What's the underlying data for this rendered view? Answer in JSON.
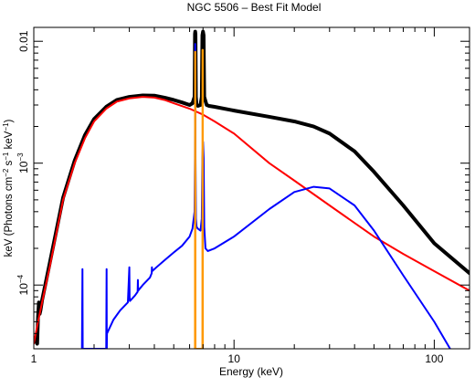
{
  "chart_data": {
    "type": "line",
    "title": "NGC 5506 – Best Fit Model",
    "xlabel": "Energy (keV)",
    "ylabel_parts": [
      "keV (Photons cm",
      "−2",
      " s",
      "−1",
      " keV",
      "−1",
      ")"
    ],
    "x_scale": "log",
    "y_scale": "log",
    "xlim": [
      1,
      150
    ],
    "ylim": [
      3e-05,
      0.013
    ],
    "grid": false,
    "x_ticks": [
      {
        "value": 1,
        "label": "1"
      },
      {
        "value": 10,
        "label": "10"
      },
      {
        "value": 100,
        "label": "100"
      }
    ],
    "y_ticks": [
      {
        "value": 0.0001,
        "label_base": "10",
        "label_exp": "−4"
      },
      {
        "value": 0.001,
        "label_base": "10",
        "label_exp": "−3"
      },
      {
        "value": 0.01,
        "label_base": "0.01",
        "label_exp": ""
      }
    ],
    "series": [
      {
        "color": "#000000",
        "width": 4,
        "x": [
          1.0,
          1.02,
          1.04,
          1.05,
          1.06,
          1.07,
          1.08,
          1.1,
          1.2,
          1.4,
          1.6,
          1.8,
          2.0,
          2.3,
          2.6,
          3.0,
          3.5,
          4.0,
          4.5,
          5.0,
          5.5,
          6.0,
          6.2,
          6.35,
          6.38,
          6.4,
          6.42,
          6.45,
          6.5,
          6.6,
          6.8,
          6.9,
          6.95,
          7.0,
          7.05,
          7.1,
          7.3,
          7.5,
          8.0,
          10.0,
          15.0,
          20.0,
          25.0,
          30.0,
          40.0,
          50.0,
          70.0,
          100.0,
          150.0
        ],
        "y": [
          3.5e-05,
          3.5e-05,
          3.3e-05,
          5.5e-05,
          7.2e-05,
          5.8e-05,
          6.2e-05,
          7.5e-05,
          0.00015,
          0.00052,
          0.00105,
          0.0017,
          0.0023,
          0.0029,
          0.0033,
          0.0035,
          0.0036,
          0.00358,
          0.00345,
          0.0033,
          0.00315,
          0.003,
          0.0031,
          0.0035,
          0.0115,
          0.012,
          0.0115,
          0.0035,
          0.003,
          0.00295,
          0.003,
          0.0035,
          0.0112,
          0.012,
          0.0112,
          0.0035,
          0.003,
          0.00295,
          0.0029,
          0.0027,
          0.0024,
          0.0022,
          0.002,
          0.00175,
          0.00125,
          0.00085,
          0.00045,
          0.00022,
          0.000125
        ]
      },
      {
        "color": "#ff0000",
        "width": 2,
        "x": [
          1.0,
          1.05,
          1.1,
          1.2,
          1.4,
          1.6,
          1.8,
          2.0,
          2.3,
          2.6,
          3.0,
          3.5,
          4.0,
          4.5,
          5.0,
          6.0,
          7.0,
          8.0,
          10.0,
          15.0,
          20.0,
          30.0,
          50.0,
          70.0,
          100.0,
          150.0
        ],
        "y": [
          3.3e-05,
          5e-05,
          7.2e-05,
          0.00014,
          0.0005,
          0.001,
          0.0016,
          0.0022,
          0.0028,
          0.0032,
          0.0034,
          0.0035,
          0.00345,
          0.0033,
          0.0031,
          0.0028,
          0.0025,
          0.0022,
          0.00175,
          0.001,
          0.00072,
          0.00045,
          0.00025,
          0.00018,
          0.00013,
          9e-05
        ]
      },
      {
        "color": "#0000ff",
        "width": 2,
        "x": [
          1.74,
          1.75,
          1.755,
          1.76,
          1.77,
          2.2,
          2.3,
          2.31,
          2.315,
          2.32,
          2.5,
          2.7,
          2.95,
          3.0,
          3.01,
          3.02,
          3.2,
          3.3,
          3.31,
          3.32,
          3.5,
          3.8,
          3.88,
          3.89,
          3.9,
          4.1,
          4.5,
          5.0,
          5.5,
          6.0,
          6.2,
          6.35,
          6.38,
          6.4,
          6.42,
          6.45,
          6.5,
          6.6,
          6.8,
          6.9,
          6.95,
          7.0,
          7.05,
          7.1,
          7.2,
          7.4,
          8.0,
          10.0,
          15.0,
          20.0,
          25.0,
          30.0,
          40.0,
          50.0,
          70.0,
          100.0,
          120.0
        ],
        "y": [
          3e-05,
          0.000135,
          3e-05,
          3e-05,
          3e-05,
          3e-05,
          3e-05,
          0.000135,
          3e-05,
          4e-05,
          5.2e-05,
          6.2e-05,
          7.2e-05,
          0.00014,
          8e-05,
          7.4e-05,
          8.2e-05,
          8.8e-05,
          0.00011,
          9e-05,
          0.0001,
          0.000115,
          0.000125,
          0.00014,
          0.00013,
          0.00014,
          0.00016,
          0.000185,
          0.00021,
          0.00025,
          0.00029,
          0.0004,
          0.0011,
          0.0095,
          0.0011,
          0.00035,
          0.0003,
          0.00029,
          0.00028,
          0.00035,
          0.0011,
          0.0015,
          0.0011,
          0.0003,
          0.0002,
          0.00019,
          0.0002,
          0.00025,
          0.00042,
          0.00058,
          0.00064,
          0.00062,
          0.00045,
          0.00028,
          0.00012,
          5e-05,
          3e-05
        ]
      },
      {
        "color": "#ff9900",
        "width": 2,
        "x": [
          6.36,
          6.38,
          6.39,
          6.41,
          6.42,
          6.44,
          6.93,
          6.95,
          6.96,
          6.98,
          6.99,
          7.01
        ],
        "y": [
          3e-05,
          3e-05,
          0.0082,
          0.0082,
          3e-05,
          3e-05,
          3e-05,
          3e-05,
          0.0085,
          0.0085,
          3e-05,
          3e-05
        ]
      }
    ]
  }
}
